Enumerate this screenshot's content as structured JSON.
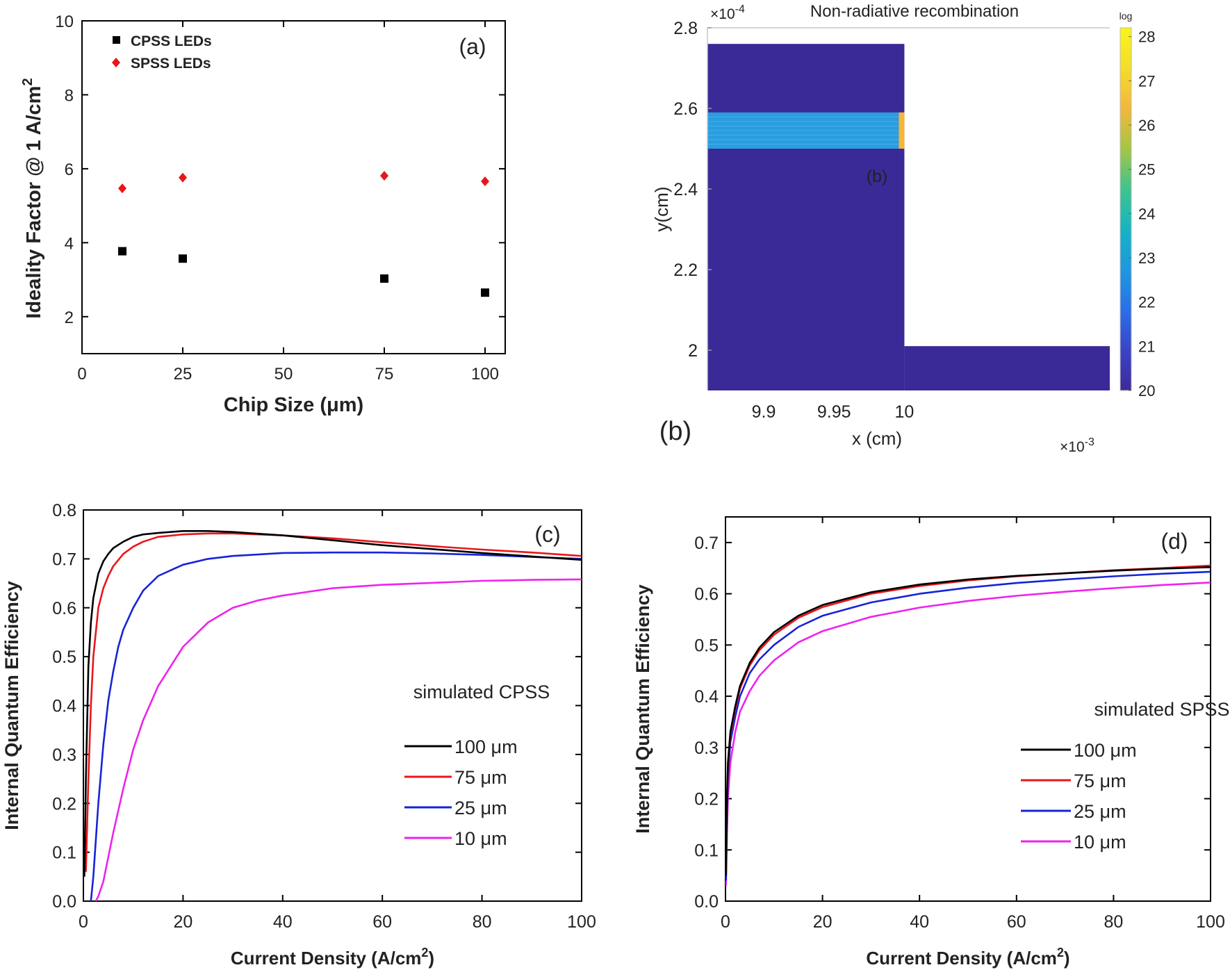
{
  "charts": [
    {
      "type": "scatter",
      "panel_label": "(a)",
      "xlabel": "Chip Size (μm)",
      "ylabel": "Ideality Factor @ 1 A/cm",
      "ylabel_sup": "2",
      "xlim": [
        0,
        105
      ],
      "ylim": [
        1,
        10
      ],
      "xticks": [
        0,
        25,
        50,
        75,
        100
      ],
      "yticks": [
        2,
        4,
        6,
        8,
        10
      ],
      "legend_position": "top-left",
      "series": [
        {
          "name": "CPSS LEDs",
          "marker": "square",
          "color": "#000000",
          "x": [
            10,
            25,
            75,
            100
          ],
          "y": [
            3.77,
            3.57,
            3.03,
            2.65
          ]
        },
        {
          "name": "SPSS LEDs",
          "marker": "diamond",
          "color": "#e8161b",
          "x": [
            10,
            25,
            75,
            100
          ],
          "y": [
            5.47,
            5.76,
            5.81,
            5.66
          ]
        }
      ]
    },
    {
      "type": "heatmap",
      "title": "Non-radiative recombination",
      "panel_label_inside": "(b)",
      "panel_label_outside": "(b)",
      "xlabel": "x (cm)",
      "ylabel": "y(cm)",
      "x_multiplier": "×10",
      "x_multiplier_exp": "-3",
      "y_multiplier": "×10",
      "y_multiplier_exp": "-4",
      "xlim": [
        9.86,
        10.146
      ],
      "ylim": [
        1.9,
        2.8
      ],
      "xticks": [
        9.9,
        9.95,
        10
      ],
      "ytick_values": [
        2,
        2.2,
        2.4,
        2.6,
        2.8
      ],
      "ytick_labels": [
        "2",
        "2.2",
        "2.4",
        "2.6",
        "2.8"
      ],
      "colorbar_label": "log",
      "colorbar_range": [
        20,
        28.2
      ],
      "colorbar_ticks": [
        20,
        21,
        22,
        23,
        24,
        25,
        26,
        27,
        28
      ],
      "colors": {
        "background": "#3a2a98",
        "band": "#2a9de0",
        "band_edge": "#f5b73a"
      },
      "regions": [
        {
          "name": "mesa",
          "x": [
            9.86,
            10.0
          ],
          "y": [
            1.9,
            2.76
          ],
          "log_value": 20
        },
        {
          "name": "base",
          "x": [
            10.0,
            10.146
          ],
          "y": [
            1.9,
            2.01
          ],
          "log_value": 20
        },
        {
          "name": "active-region",
          "x": [
            9.86,
            9.996
          ],
          "y": [
            2.5,
            2.59
          ],
          "log_value": 22.4
        },
        {
          "name": "sidewall-edge",
          "x": [
            9.996,
            10.0
          ],
          "y": [
            2.5,
            2.59
          ],
          "log_value": 26.6
        }
      ]
    },
    {
      "type": "line",
      "panel_label": "(c)",
      "annotation": "simulated CPSS",
      "xlabel": "Current Density (A/cm",
      "xlabel_sup": "2",
      "xlabel_close": ")",
      "ylabel": "Internal Quantum Efficiency",
      "xlim": [
        0,
        100
      ],
      "ylim": [
        0,
        0.8
      ],
      "xticks": [
        0,
        20,
        40,
        60,
        80,
        100
      ],
      "yticks": [
        0.0,
        0.1,
        0.2,
        0.3,
        0.4,
        0.5,
        0.6,
        0.7,
        0.8
      ],
      "ytick_labels": [
        "0.0",
        "0.1",
        "0.2",
        "0.3",
        "0.4",
        "0.5",
        "0.6",
        "0.7",
        "0.8"
      ],
      "legend_position": "bottom-right",
      "series": [
        {
          "name": "100 μm",
          "color": "#000000",
          "x": [
            0.2,
            0.5,
            1,
            1.5,
            2,
            3,
            4,
            5,
            6,
            8,
            10,
            12,
            15,
            20,
            25,
            30,
            40,
            50,
            60,
            70,
            80,
            90,
            100
          ],
          "y": [
            0.05,
            0.25,
            0.48,
            0.57,
            0.62,
            0.67,
            0.695,
            0.71,
            0.722,
            0.735,
            0.745,
            0.75,
            0.753,
            0.757,
            0.757,
            0.755,
            0.748,
            0.738,
            0.728,
            0.72,
            0.712,
            0.705,
            0.698
          ]
        },
        {
          "name": "75 μm",
          "color": "#e8161b",
          "x": [
            0.5,
            1,
            1.5,
            2,
            3,
            4,
            5,
            6,
            8,
            10,
            12,
            15,
            20,
            25,
            30,
            40,
            50,
            60,
            70,
            80,
            90,
            100
          ],
          "y": [
            0.06,
            0.25,
            0.4,
            0.5,
            0.6,
            0.64,
            0.665,
            0.685,
            0.71,
            0.725,
            0.735,
            0.745,
            0.75,
            0.752,
            0.752,
            0.748,
            0.742,
            0.734,
            0.726,
            0.719,
            0.713,
            0.706
          ]
        },
        {
          "name": "25 μm",
          "color": "#1524d6",
          "x": [
            1.5,
            2,
            3,
            4,
            5,
            6,
            7,
            8,
            10,
            12,
            15,
            20,
            25,
            30,
            40,
            50,
            60,
            70,
            80,
            90,
            100
          ],
          "y": [
            0.0,
            0.05,
            0.2,
            0.32,
            0.41,
            0.47,
            0.52,
            0.555,
            0.6,
            0.635,
            0.665,
            0.688,
            0.7,
            0.706,
            0.712,
            0.713,
            0.713,
            0.711,
            0.708,
            0.704,
            0.7
          ]
        },
        {
          "name": "10 μm",
          "color": "#ee22ee",
          "x": [
            2.5,
            3,
            4,
            5,
            6,
            8,
            10,
            12,
            15,
            20,
            25,
            30,
            35,
            40,
            50,
            60,
            70,
            80,
            90,
            100
          ],
          "y": [
            0.0,
            0.01,
            0.04,
            0.09,
            0.14,
            0.23,
            0.31,
            0.37,
            0.44,
            0.52,
            0.57,
            0.6,
            0.615,
            0.625,
            0.64,
            0.647,
            0.651,
            0.655,
            0.657,
            0.658
          ]
        }
      ]
    },
    {
      "type": "line",
      "panel_label": "(d)",
      "annotation": "simulated SPSS",
      "xlabel": "Current Density (A/cm",
      "xlabel_sup": "2",
      "xlabel_close": ")",
      "ylabel": "Internal Quantum Efficiency",
      "xlim": [
        0,
        100
      ],
      "ylim": [
        0,
        0.75
      ],
      "xticks": [
        0,
        20,
        40,
        60,
        80,
        100
      ],
      "yticks": [
        0.0,
        0.1,
        0.2,
        0.3,
        0.4,
        0.5,
        0.6,
        0.7
      ],
      "ytick_labels": [
        "0.0",
        "0.1",
        "0.2",
        "0.3",
        "0.4",
        "0.5",
        "0.6",
        "0.7"
      ],
      "legend_position": "bottom-right",
      "series": [
        {
          "name": "100 μm",
          "color": "#000000",
          "x": [
            0.1,
            0.3,
            0.5,
            1,
            2,
            3,
            5,
            7,
            10,
            15,
            20,
            30,
            40,
            50,
            60,
            70,
            80,
            90,
            100
          ],
          "y": [
            0.05,
            0.2,
            0.27,
            0.33,
            0.38,
            0.42,
            0.465,
            0.495,
            0.525,
            0.557,
            0.578,
            0.603,
            0.618,
            0.628,
            0.635,
            0.64,
            0.645,
            0.649,
            0.652
          ]
        },
        {
          "name": "75 μm",
          "color": "#e8161b",
          "x": [
            0.1,
            0.3,
            0.5,
            1,
            2,
            3,
            5,
            7,
            10,
            15,
            20,
            30,
            40,
            50,
            60,
            70,
            80,
            90,
            100
          ],
          "y": [
            0.05,
            0.19,
            0.26,
            0.325,
            0.375,
            0.415,
            0.46,
            0.49,
            0.52,
            0.553,
            0.574,
            0.6,
            0.615,
            0.626,
            0.634,
            0.64,
            0.646,
            0.65,
            0.655
          ]
        },
        {
          "name": "25 μm",
          "color": "#1524d6",
          "x": [
            0.1,
            0.3,
            0.5,
            1,
            2,
            3,
            5,
            7,
            10,
            15,
            20,
            30,
            40,
            50,
            60,
            70,
            80,
            90,
            100
          ],
          "y": [
            0.04,
            0.17,
            0.24,
            0.31,
            0.36,
            0.4,
            0.445,
            0.472,
            0.5,
            0.535,
            0.557,
            0.583,
            0.6,
            0.612,
            0.621,
            0.628,
            0.634,
            0.639,
            0.643
          ]
        },
        {
          "name": "10 μm",
          "color": "#ee22ee",
          "x": [
            0.1,
            0.3,
            0.5,
            1,
            2,
            3,
            5,
            7,
            10,
            15,
            20,
            30,
            40,
            50,
            60,
            70,
            80,
            90,
            100
          ],
          "y": [
            0.03,
            0.13,
            0.2,
            0.27,
            0.33,
            0.37,
            0.41,
            0.44,
            0.47,
            0.505,
            0.527,
            0.555,
            0.573,
            0.586,
            0.596,
            0.604,
            0.611,
            0.617,
            0.622
          ]
        }
      ]
    }
  ]
}
